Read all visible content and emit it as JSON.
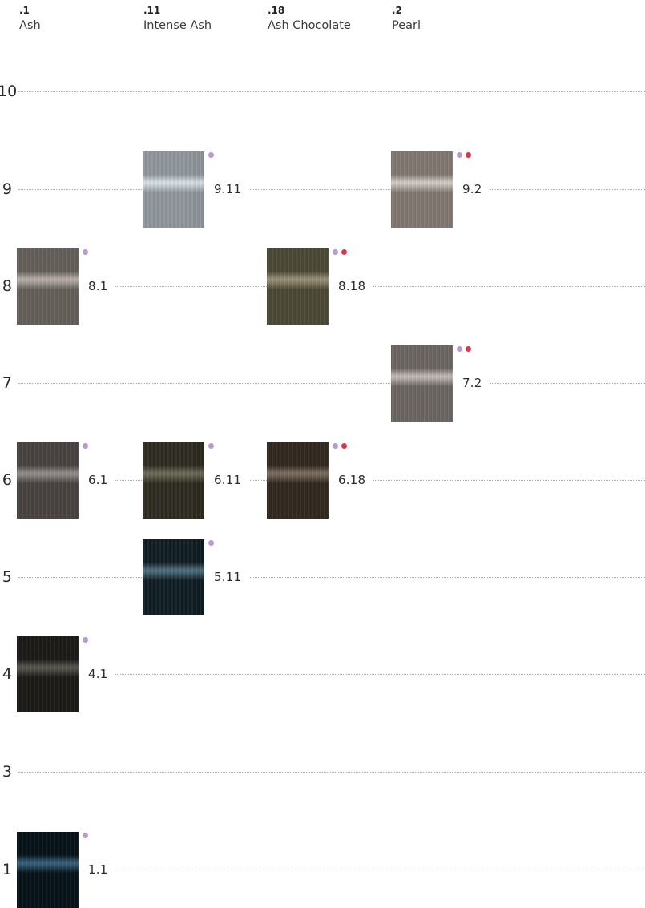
{
  "columns": [
    {
      "code": ".1",
      "name": "Ash"
    },
    {
      "code": ".11",
      "name": "Intense Ash"
    },
    {
      "code": ".18",
      "name": "Ash Chocolate"
    },
    {
      "code": ".2",
      "name": "Pearl"
    }
  ],
  "levels": [
    {
      "label": "10"
    },
    {
      "label": "9"
    },
    {
      "label": "8"
    },
    {
      "label": "7"
    },
    {
      "label": "6"
    },
    {
      "label": "5"
    },
    {
      "label": "4"
    },
    {
      "label": "3"
    },
    {
      "label": "1"
    }
  ],
  "indicator_colors": {
    "purple": "#b79ad0",
    "red": "#e0344a"
  },
  "shades": [
    {
      "label": "9.11",
      "column": ".11",
      "level": "9",
      "dots": [
        "purple"
      ],
      "base_color": "#8e959b",
      "sheen_color": "#d6dde3"
    },
    {
      "label": "9.2",
      "column": ".2",
      "level": "9",
      "dots": [
        "purple",
        "red"
      ],
      "base_color": "#837a72",
      "sheen_color": "#d2ccc6"
    },
    {
      "label": "8.1",
      "column": ".1",
      "level": "8",
      "dots": [
        "purple"
      ],
      "base_color": "#67615c",
      "sheen_color": "#b8b0a9"
    },
    {
      "label": "8.18",
      "column": ".18",
      "level": "8",
      "dots": [
        "purple",
        "red"
      ],
      "base_color": "#4e4a37",
      "sheen_color": "#98917a"
    },
    {
      "label": "7.2",
      "column": ".2",
      "level": "7",
      "dots": [
        "purple",
        "red"
      ],
      "base_color": "#6e6764",
      "sheen_color": "#c2bbb7"
    },
    {
      "label": "6.1",
      "column": ".1",
      "level": "6",
      "dots": [
        "purple"
      ],
      "base_color": "#4a4443",
      "sheen_color": "#958d8b"
    },
    {
      "label": "6.11",
      "column": ".11",
      "level": "6",
      "dots": [
        "purple"
      ],
      "base_color": "#2d2a20",
      "sheen_color": "#6b6757"
    },
    {
      "label": "6.18",
      "column": ".18",
      "level": "6",
      "dots": [
        "purple",
        "red"
      ],
      "base_color": "#332a20",
      "sheen_color": "#7a6e5f"
    },
    {
      "label": "5.11",
      "column": ".11",
      "level": "5",
      "dots": [
        "purple"
      ],
      "base_color": "#0f1c22",
      "sheen_color": "#4c6d7d"
    },
    {
      "label": "4.1",
      "column": ".1",
      "level": "4",
      "dots": [
        "purple"
      ],
      "base_color": "#1c1b18",
      "sheen_color": "#59564f"
    },
    {
      "label": "1.1",
      "column": ".1",
      "level": "1",
      "dots": [
        "purple"
      ],
      "base_color": "#07131a",
      "sheen_color": "#36617a"
    }
  ]
}
